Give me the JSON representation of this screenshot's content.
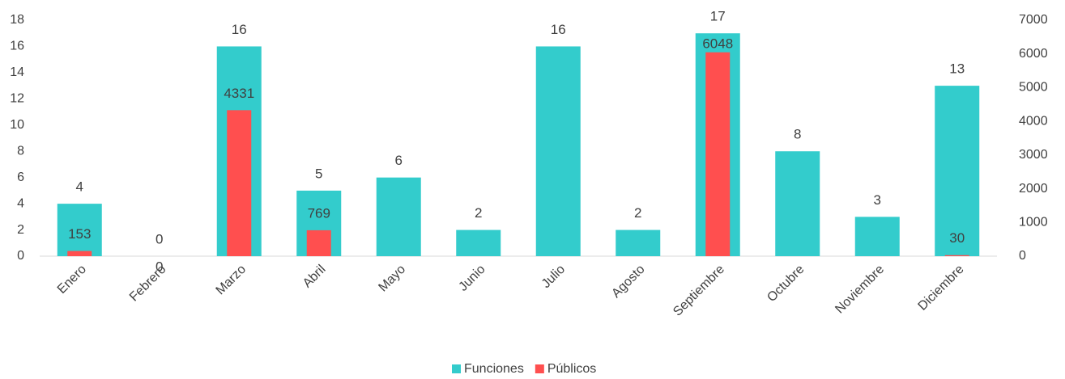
{
  "chart_data": {
    "type": "bar",
    "categories": [
      "Enero",
      "Febrero",
      "Marzo",
      "Abril",
      "Mayo",
      "Junio",
      "Julio",
      "Agosto",
      "Septiembre",
      "Octubre",
      "Noviembre",
      "Diciembre"
    ],
    "series": [
      {
        "name": "Funciones",
        "color": "#33cccc",
        "values": [
          4,
          0,
          16,
          5,
          6,
          2,
          16,
          2,
          17,
          8,
          3,
          13
        ]
      },
      {
        "name": "Públicos",
        "color": "#ff4f4f",
        "axis": "y2",
        "values": [
          153,
          0,
          4331,
          769,
          null,
          null,
          null,
          null,
          6048,
          null,
          null,
          30
        ]
      }
    ],
    "ylim": [
      0,
      18
    ],
    "yticks": [
      0,
      2,
      4,
      6,
      8,
      10,
      12,
      14,
      16,
      18
    ],
    "y2lim": [
      0,
      7000
    ],
    "y2ticks": [
      0,
      1000,
      2000,
      3000,
      4000,
      5000,
      6000,
      7000
    ],
    "grid": false,
    "legend": "bottom"
  }
}
